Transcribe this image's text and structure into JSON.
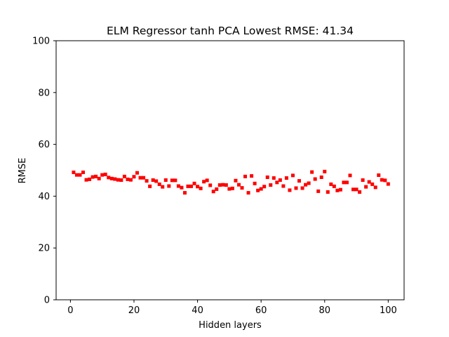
{
  "chart_data": {
    "type": "scatter",
    "title": "ELM Regressor tanh PCA Lowest RMSE: 41.34",
    "xlabel": "Hidden layers",
    "ylabel": "RMSE",
    "xlim": [
      -4.5,
      105
    ],
    "ylim": [
      0,
      100
    ],
    "xticks": [
      0,
      20,
      40,
      60,
      80,
      100
    ],
    "yticks": [
      0,
      20,
      40,
      60,
      80,
      100
    ],
    "grid": false,
    "marker_color": "#ff0000",
    "series": [
      {
        "x": [
          1,
          2,
          3,
          4,
          5,
          6,
          7,
          8,
          9,
          10,
          11,
          12,
          13,
          14,
          15,
          16,
          17,
          18,
          19,
          20,
          21,
          22,
          23,
          24,
          25,
          26,
          27,
          28,
          29,
          30,
          31,
          32,
          33,
          34,
          35,
          36,
          37,
          38,
          39,
          40,
          41,
          42,
          43,
          44,
          45,
          46,
          47,
          48,
          49,
          50,
          51,
          52,
          53,
          54,
          55,
          56,
          57,
          58,
          59,
          60,
          61,
          62,
          63,
          64,
          65,
          66,
          67,
          68,
          69,
          70,
          71,
          72,
          73,
          74,
          75,
          76,
          77,
          78,
          79,
          80,
          81,
          82,
          83,
          84,
          85,
          86,
          87,
          88,
          89,
          90,
          91,
          92,
          93,
          94,
          95,
          96,
          97,
          98,
          99,
          100
        ],
        "y": [
          49.2,
          48.2,
          48.2,
          49.2,
          46.3,
          46.5,
          47.4,
          47.6,
          46.8,
          48.2,
          48.4,
          47.2,
          46.8,
          46.6,
          46.3,
          46.2,
          47.6,
          46.5,
          46.3,
          47.5,
          49.0,
          47.1,
          47.1,
          45.9,
          43.8,
          46.2,
          45.8,
          44.6,
          43.6,
          46.2,
          43.9,
          46.1,
          46.1,
          43.9,
          43.3,
          41.3,
          43.8,
          43.8,
          44.9,
          43.7,
          43.0,
          45.6,
          46.1,
          44.2,
          41.8,
          42.7,
          44.3,
          44.4,
          44.3,
          42.8,
          43.0,
          46.0,
          44.4,
          43.2,
          47.6,
          41.3,
          47.8,
          44.9,
          42.2,
          42.8,
          43.7,
          47.3,
          44.3,
          47.0,
          45.3,
          46.2,
          43.9,
          47.0,
          42.3,
          48.0,
          43.1,
          45.9,
          43.1,
          44.4,
          45.0,
          49.3,
          46.6,
          41.9,
          47.3,
          49.5,
          41.6,
          44.6,
          43.8,
          42.2,
          42.5,
          45.3,
          45.3,
          48.0,
          42.6,
          42.6,
          41.6,
          46.2,
          43.6,
          45.5,
          44.6,
          43.4,
          48.1,
          46.3,
          46.1,
          44.7
        ]
      }
    ]
  }
}
